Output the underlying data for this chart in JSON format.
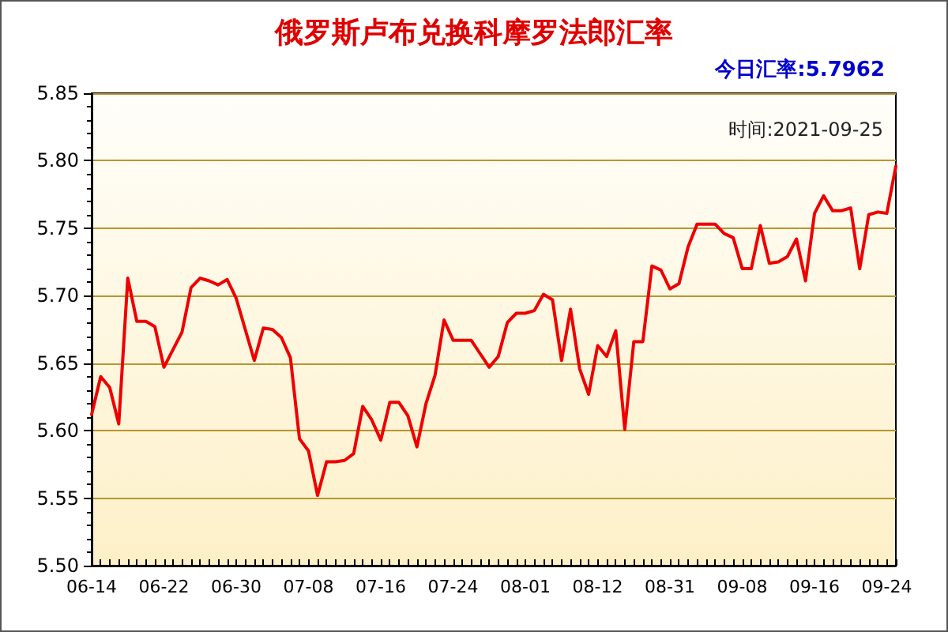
{
  "chart_data": {
    "type": "line",
    "title": "俄罗斯卢布兑换科摩罗法郎汇率",
    "subtitle": "今日汇率:5.7962",
    "annotations": [
      "时间:2021-09-25"
    ],
    "categories": [
      "06-14",
      null,
      null,
      null,
      null,
      null,
      null,
      null,
      "06-22",
      null,
      null,
      null,
      null,
      null,
      null,
      null,
      "06-30",
      null,
      null,
      null,
      null,
      null,
      null,
      null,
      "07-08",
      null,
      null,
      null,
      null,
      null,
      null,
      null,
      "07-16",
      null,
      null,
      null,
      null,
      null,
      null,
      null,
      "07-24",
      null,
      null,
      null,
      null,
      null,
      null,
      null,
      "08-01",
      null,
      null,
      null,
      null,
      null,
      null,
      null,
      "08-12",
      null,
      null,
      null,
      null,
      null,
      null,
      null,
      "08-31",
      null,
      null,
      null,
      null,
      null,
      null,
      null,
      "09-08",
      null,
      null,
      null,
      null,
      null,
      null,
      null,
      "09-16",
      null,
      null,
      null,
      null,
      null,
      null,
      null,
      "09-24",
      null
    ],
    "series": [
      {
        "color": "#ee0000",
        "values": [
          5.612,
          5.64,
          5.632,
          5.605,
          5.713,
          5.681,
          5.681,
          5.677,
          5.647,
          5.66,
          5.673,
          5.706,
          5.713,
          5.711,
          5.708,
          5.712,
          5.698,
          5.675,
          5.652,
          5.676,
          5.675,
          5.669,
          5.654,
          5.594,
          5.585,
          5.552,
          5.577,
          5.577,
          5.578,
          5.583,
          5.618,
          5.608,
          5.593,
          5.621,
          5.621,
          5.611,
          5.588,
          5.62,
          5.641,
          5.682,
          5.667,
          5.667,
          5.667,
          5.657,
          5.647,
          5.655,
          5.68,
          5.687,
          5.687,
          5.689,
          5.701,
          5.697,
          5.652,
          5.69,
          5.646,
          5.627,
          5.663,
          5.655,
          5.674,
          5.601,
          5.666,
          5.666,
          5.722,
          5.719,
          5.705,
          5.709,
          5.736,
          5.753,
          5.753,
          5.753,
          5.746,
          5.743,
          5.72,
          5.72,
          5.752,
          5.724,
          5.725,
          5.729,
          5.742,
          5.711,
          5.761,
          5.774,
          5.763,
          5.763,
          5.765,
          5.72,
          5.76,
          5.762,
          5.761,
          5.796
        ]
      }
    ],
    "ylim": [
      5.5,
      5.85
    ],
    "yticks": [
      {
        "value": 5.5,
        "label": "5.50"
      },
      5.55,
      {
        "value": 5.6,
        "label": "5.60"
      },
      5.65,
      {
        "value": 5.7,
        "label": "5.70"
      },
      5.75,
      {
        "value": 5.8,
        "label": "5.80"
      },
      5.85
    ],
    "grid": "y",
    "marker": "none",
    "line_style": "solid"
  }
}
